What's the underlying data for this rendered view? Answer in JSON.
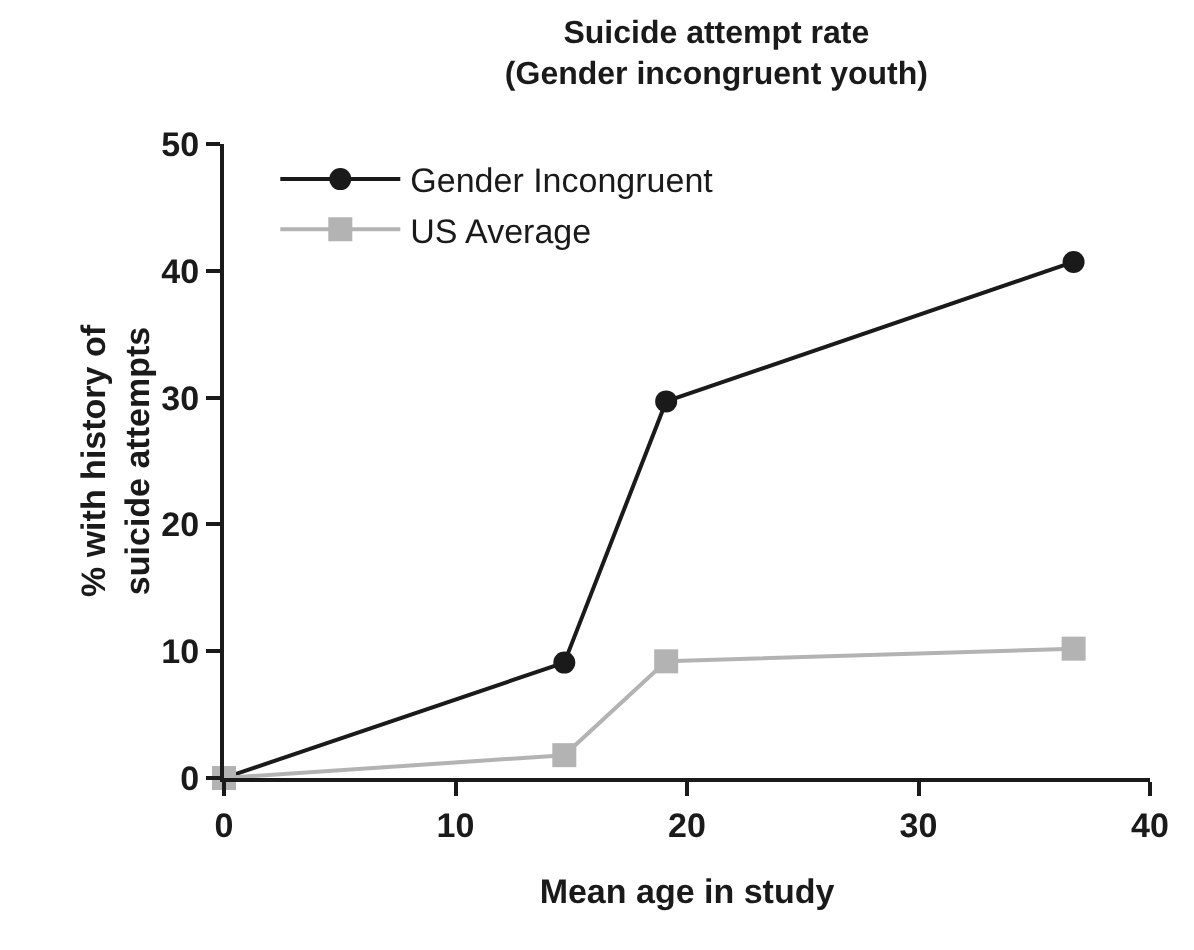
{
  "chart_data": {
    "type": "line",
    "title": "Suicide attempt rate\n(Gender incongruent youth)",
    "xlabel": "Mean age in study",
    "ylabel": "% with history of\nsuicide attempts",
    "x": [
      0,
      14.7,
      19.1,
      36.7
    ],
    "series": [
      {
        "name": "Gender Incongruent",
        "color": "#1a1a1a",
        "marker": "circle",
        "values": [
          0,
          9.1,
          29.7,
          40.7
        ]
      },
      {
        "name": "US Average",
        "color": "#b3b3b3",
        "marker": "square",
        "values": [
          0,
          1.8,
          9.2,
          10.2
        ]
      }
    ],
    "xlim": [
      0,
      40
    ],
    "xticks": [
      0,
      10,
      20,
      30,
      40
    ],
    "ylim": [
      0,
      50
    ],
    "yticks": [
      0,
      10,
      20,
      30,
      40,
      50
    ],
    "grid": false,
    "legend": "top left"
  }
}
